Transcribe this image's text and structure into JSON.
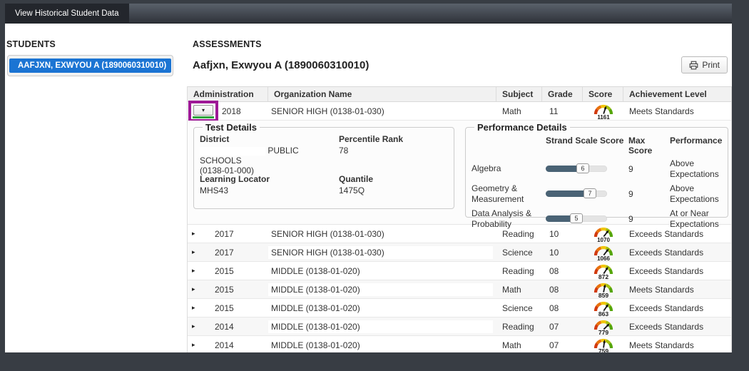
{
  "navbar": {
    "tab_label": "View Historical Student Data"
  },
  "sidebar": {
    "heading": "STUDENTS",
    "students": [
      {
        "label": "AAFJXN, EXWYOU A (1890060310010)",
        "selected": true
      }
    ]
  },
  "main": {
    "heading": "ASSESSMENTS",
    "student_title": "Aafjxn, Exwyou A (1890060310010)",
    "print_label": "Print",
    "table": {
      "columns": [
        "Administration",
        "Organization Name",
        "Subject",
        "Grade",
        "Score",
        "Achievement Level"
      ],
      "rows": [
        {
          "administration": "2018",
          "organization": "SENIOR HIGH (0138-01-030)",
          "subject": "Math",
          "grade": "11",
          "score": "1161",
          "achievement": "Meets Standards",
          "expanded": true,
          "needle_angle": 18
        },
        {
          "administration": "2017",
          "organization": "SENIOR HIGH (0138-01-030)",
          "subject": "Reading",
          "grade": "10",
          "score": "1070",
          "achievement": "Exceeds Standards",
          "expanded": false,
          "needle_angle": 38
        },
        {
          "administration": "2017",
          "organization": "SENIOR HIGH (0138-01-030)",
          "subject": "Science",
          "grade": "10",
          "score": "1066",
          "achievement": "Exceeds Standards",
          "expanded": false,
          "needle_angle": 38
        },
        {
          "administration": "2015",
          "organization": "MIDDLE (0138-01-020)",
          "subject": "Reading",
          "grade": "08",
          "score": "872",
          "achievement": "Exceeds Standards",
          "expanded": false,
          "needle_angle": 33
        },
        {
          "administration": "2015",
          "organization": "MIDDLE (0138-01-020)",
          "subject": "Math",
          "grade": "08",
          "score": "859",
          "achievement": "Meets Standards",
          "expanded": false,
          "needle_angle": 12
        },
        {
          "administration": "2015",
          "organization": "MIDDLE (0138-01-020)",
          "subject": "Science",
          "grade": "08",
          "score": "863",
          "achievement": "Exceeds Standards",
          "expanded": false,
          "needle_angle": 35
        },
        {
          "administration": "2014",
          "organization": "MIDDLE (0138-01-020)",
          "subject": "Reading",
          "grade": "07",
          "score": "779",
          "achievement": "Exceeds Standards",
          "expanded": false,
          "needle_angle": 45
        },
        {
          "administration": "2014",
          "organization": "MIDDLE (0138-01-020)",
          "subject": "Math",
          "grade": "07",
          "score": "759",
          "achievement": "Meets Standards",
          "expanded": false,
          "needle_angle": 8
        }
      ],
      "details": {
        "test_details": {
          "title": "Test Details",
          "district_label": "District",
          "district_value": "PUBLIC SCHOOLS",
          "district_value_line2": "(0138-01-000)",
          "percentile_label": "Percentile Rank",
          "percentile_value": "78",
          "learning_locator_label": "Learning Locator",
          "learning_locator_value": "MHS43",
          "quantile_label": "Quantile",
          "quantile_value": "1475Q"
        },
        "performance_details": {
          "title": "Performance Details",
          "col_scale_score": "Strand Scale Score",
          "col_max_score": "Max Score",
          "col_performance": "Performance",
          "strands": [
            {
              "name": "Algebra",
              "scale_score": 6,
              "max_score": 9,
              "performance": "Above Expectations"
            },
            {
              "name": "Geometry & Measurement",
              "scale_score": 7,
              "max_score": 9,
              "performance": "Above Expectations"
            },
            {
              "name": "Data Analysis & Probability",
              "scale_score": 5,
              "max_score": 9,
              "performance": "At or Near Expectations"
            }
          ]
        }
      }
    }
  },
  "colors": {
    "selected_student_bg": "#1b74d3",
    "annotation_box": "#9e1896",
    "annotation_underline": "#2ea33c",
    "slider_fill": "#4a6375",
    "gauge_segments": [
      "#d23a0e",
      "#e8720c",
      "#f2c60a",
      "#a6bf0b",
      "#55a50a"
    ],
    "gauge_needle": "#111111"
  },
  "icon_names": [
    "print-icon",
    "expand-collapsed-icon",
    "expand-open-icon",
    "score-gauge-icon"
  ]
}
